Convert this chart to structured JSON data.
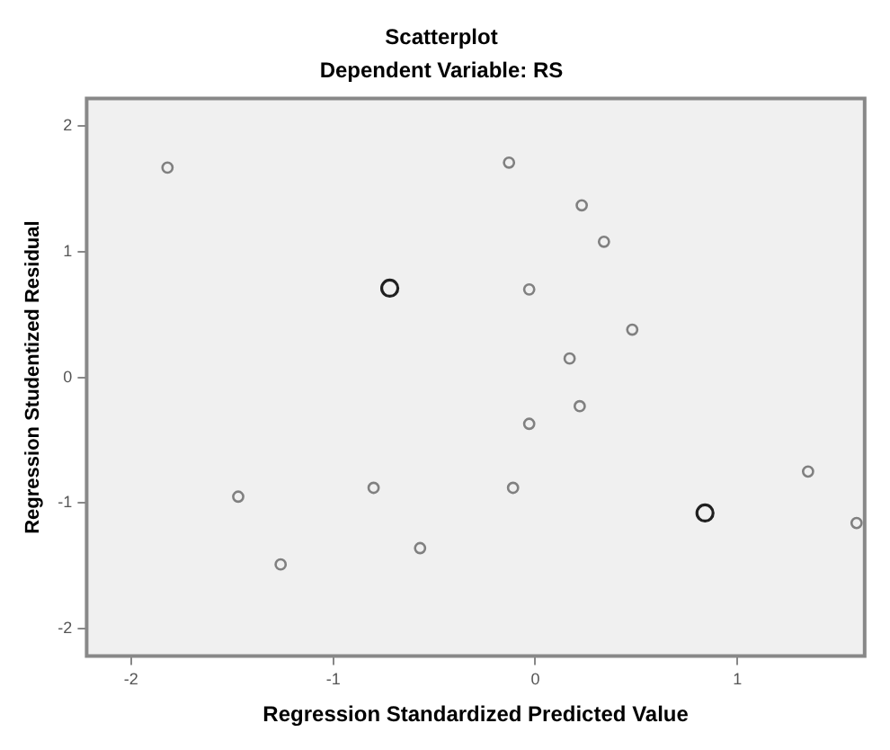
{
  "chart_data": {
    "type": "scatter",
    "title": "Scatterplot",
    "subtitle": "Dependent Variable: RS",
    "xlabel": "Regression Standardized Predicted Value",
    "ylabel": "Regression Studentized Residual",
    "xlim": [
      -2.22,
      1.63
    ],
    "ylim": [
      -2.22,
      2.22
    ],
    "xticks": [
      -2,
      -1,
      0,
      1
    ],
    "yticks": [
      -2,
      -1,
      0,
      1,
      2
    ],
    "grid": false,
    "marker": "circle",
    "series": [
      {
        "color": "#808080",
        "x": [
          -1.82,
          -0.13,
          0.23,
          0.34,
          -0.03,
          0.48,
          0.17,
          0.22,
          -0.03,
          -1.47,
          -0.8,
          -1.26,
          -0.57,
          -0.11,
          1.35,
          1.59
        ],
        "values": [
          1.67,
          1.71,
          1.37,
          1.08,
          0.7,
          0.38,
          0.15,
          -0.23,
          -0.37,
          -0.95,
          -0.88,
          -1.49,
          -1.36,
          -0.88,
          -0.75,
          -1.16
        ]
      },
      {
        "color": "#202020",
        "x": [
          -0.72,
          0.84
        ],
        "values": [
          0.71,
          -1.08
        ]
      }
    ]
  }
}
